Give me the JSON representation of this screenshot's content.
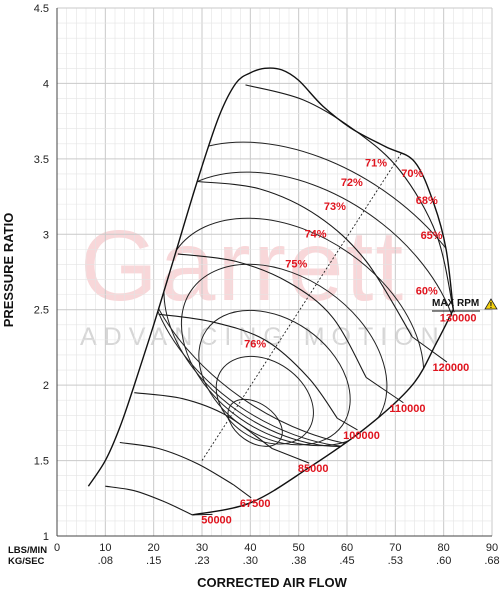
{
  "chart_data": {
    "type": "compressor-map",
    "xlabel": "CORRECTED AIR FLOW",
    "ylabel": "PRESSURE RATIO",
    "x_row_labels": [
      "LBS/MIN",
      "KG/SEC"
    ],
    "x_lbs_ticks": [
      "0",
      "10",
      "20",
      "30",
      "40",
      "50",
      "60",
      "70",
      "80",
      "90"
    ],
    "x_kg_ticks": [
      ".08",
      ".15",
      ".23",
      ".30",
      ".38",
      ".45",
      ".53",
      ".60",
      ".68"
    ],
    "xlim": [
      0,
      90
    ],
    "ylim": [
      1,
      4.5
    ],
    "y_ticks": [
      "1",
      "1.5",
      "2",
      "2.5",
      "3",
      "3.5",
      "4",
      "4.5"
    ],
    "grid": true,
    "watermark": {
      "brand": "Garrett",
      "tagline": "ADVANCING MOTION"
    },
    "efficiency_labels": [
      {
        "text": "76%",
        "x": 41,
        "y": 2.25
      },
      {
        "text": "75%",
        "x": 49.5,
        "y": 2.78
      },
      {
        "text": "74%",
        "x": 53.5,
        "y": 2.98
      },
      {
        "text": "73%",
        "x": 57.5,
        "y": 3.16
      },
      {
        "text": "72%",
        "x": 61,
        "y": 3.32
      },
      {
        "text": "71%",
        "x": 66,
        "y": 3.45
      },
      {
        "text": "70%",
        "x": 73.5,
        "y": 3.38
      },
      {
        "text": "68%",
        "x": 76.5,
        "y": 3.2
      },
      {
        "text": "65%",
        "x": 77.5,
        "y": 2.97
      },
      {
        "text": "60%",
        "x": 76.5,
        "y": 2.6
      }
    ],
    "speed_lines": [
      {
        "label": "50000",
        "rpm": 50000,
        "points": [
          [
            10,
            1.33
          ],
          [
            16,
            1.3
          ],
          [
            22,
            1.23
          ],
          [
            28,
            1.14
          ]
        ],
        "label_at": [
          33,
          1.11
        ]
      },
      {
        "label": "67500",
        "rpm": 67500,
        "points": [
          [
            13,
            1.62
          ],
          [
            21,
            1.58
          ],
          [
            29,
            1.48
          ],
          [
            36.5,
            1.34
          ]
        ],
        "label_at": [
          41,
          1.22
        ]
      },
      {
        "label": "85000",
        "rpm": 85000,
        "points": [
          [
            16,
            1.95
          ],
          [
            26,
            1.91
          ],
          [
            35,
            1.8
          ],
          [
            44.5,
            1.58
          ]
        ],
        "label_at": [
          53,
          1.45
        ]
      },
      {
        "label": "100000",
        "rpm": 100000,
        "points": [
          [
            21,
            2.47
          ],
          [
            32,
            2.42
          ],
          [
            43,
            2.3
          ],
          [
            52,
            2.05
          ],
          [
            58,
            1.78
          ]
        ],
        "label_at": [
          63,
          1.67
        ]
      },
      {
        "label": "110000",
        "rpm": 110000,
        "points": [
          [
            25,
            2.87
          ],
          [
            37,
            2.82
          ],
          [
            48,
            2.68
          ],
          [
            57,
            2.45
          ],
          [
            64,
            2.05
          ]
        ],
        "label_at": [
          72.5,
          1.85
        ]
      },
      {
        "label": "120000",
        "rpm": 120000,
        "points": [
          [
            29,
            3.35
          ],
          [
            42,
            3.3
          ],
          [
            54,
            3.12
          ],
          [
            64,
            2.82
          ],
          [
            73.5,
            2.32
          ]
        ],
        "label_at": [
          81.5,
          2.12
        ]
      },
      {
        "label": "130000",
        "rpm": 130000,
        "points": [
          [
            39,
            3.99
          ],
          [
            51,
            3.89
          ],
          [
            62,
            3.68
          ],
          [
            71,
            3.42
          ],
          [
            78.5,
            3.0
          ],
          [
            82,
            2.5
          ]
        ],
        "label_at": [
          83,
          2.45
        ]
      }
    ],
    "surge_line": [
      [
        6.5,
        1.33
      ],
      [
        10,
        1.5
      ],
      [
        13,
        1.72
      ],
      [
        16,
        2.0
      ],
      [
        20,
        2.4
      ],
      [
        24,
        2.82
      ],
      [
        29,
        3.35
      ],
      [
        33.5,
        3.78
      ],
      [
        37,
        4.0
      ],
      [
        40,
        4.07
      ],
      [
        43,
        4.1
      ],
      [
        46.5,
        4.09
      ],
      [
        50,
        4.02
      ],
      [
        55,
        3.85
      ],
      [
        61,
        3.7
      ],
      [
        68,
        3.58
      ],
      [
        74,
        3.48
      ],
      [
        78,
        3.2
      ],
      [
        80.5,
        2.9
      ],
      [
        82,
        2.5
      ]
    ],
    "choke_line": [
      [
        82,
        2.5
      ],
      [
        78.5,
        2.28
      ],
      [
        73.5,
        2.0
      ],
      [
        64,
        1.72
      ],
      [
        52,
        1.45
      ],
      [
        40,
        1.22
      ],
      [
        28,
        1.14
      ]
    ],
    "efficiency_islands": [
      {
        "label": "76%",
        "center": [
          41,
          1.75
        ],
        "rx": 4,
        "ry": 0.2
      },
      {
        "label": "75%",
        "center": [
          43,
          1.9
        ],
        "rx": 8,
        "ry": 0.35
      },
      {
        "label": "74%",
        "center": [
          45,
          2.05
        ],
        "rx": 12,
        "ry": 0.55
      },
      {
        "label": "73%",
        "center": [
          47,
          2.2
        ],
        "rx": 16,
        "ry": 0.75
      },
      {
        "label": "72%",
        "center": [
          49,
          2.35
        ],
        "rx": 20,
        "ry": 0.95
      },
      {
        "label": "71%",
        "center": [
          51,
          2.5
        ],
        "rx": 24,
        "ry": 1.15
      },
      {
        "label": "70%",
        "center": [
          53,
          2.6
        ],
        "rx": 26,
        "ry": 1.3
      }
    ],
    "max_rpm_label": "MAX RPM",
    "warning_symbol": "!"
  }
}
